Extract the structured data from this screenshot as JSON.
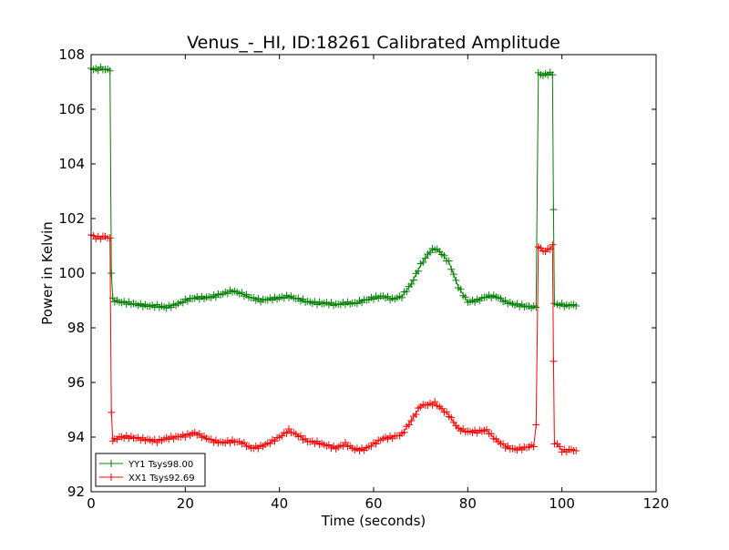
{
  "chart_data": {
    "type": "line",
    "title": "Venus_-_HI, ID:18261 Calibrated Amplitude",
    "xlabel": "Time (seconds)",
    "ylabel": "Power in Kelvin",
    "xlim": [
      0,
      120
    ],
    "ylim": [
      92,
      108
    ],
    "xticks": [
      0,
      20,
      40,
      60,
      80,
      100,
      120
    ],
    "yticks": [
      92,
      94,
      96,
      98,
      100,
      102,
      104,
      106,
      108
    ],
    "xtick_labels": [
      "0",
      "20",
      "40",
      "60",
      "80",
      "100",
      "120"
    ],
    "ytick_labels": [
      "92",
      "94",
      "96",
      "98",
      "100",
      "102",
      "104",
      "106",
      "108"
    ],
    "grid": false,
    "legend_position": "lower-left",
    "series": [
      {
        "name": "YY1 Tsys98.00",
        "color": "#008000",
        "marker": "+",
        "points": [
          [
            0,
            107.5
          ],
          [
            1,
            107.45
          ],
          [
            2,
            107.5
          ],
          [
            3,
            107.45
          ],
          [
            4,
            107.45
          ],
          [
            4.3,
            100.0
          ],
          [
            4.6,
            99.05
          ],
          [
            5,
            99.0
          ],
          [
            6,
            98.95
          ],
          [
            8,
            98.9
          ],
          [
            10,
            98.85
          ],
          [
            12,
            98.8
          ],
          [
            14,
            98.8
          ],
          [
            16,
            98.75
          ],
          [
            18,
            98.85
          ],
          [
            20,
            99.0
          ],
          [
            22,
            99.1
          ],
          [
            24,
            99.1
          ],
          [
            26,
            99.15
          ],
          [
            28,
            99.25
          ],
          [
            30,
            99.35
          ],
          [
            32,
            99.25
          ],
          [
            34,
            99.1
          ],
          [
            36,
            99.0
          ],
          [
            38,
            99.05
          ],
          [
            40,
            99.1
          ],
          [
            42,
            99.15
          ],
          [
            44,
            99.05
          ],
          [
            46,
            98.95
          ],
          [
            48,
            98.9
          ],
          [
            50,
            98.9
          ],
          [
            52,
            98.85
          ],
          [
            54,
            98.9
          ],
          [
            56,
            98.9
          ],
          [
            58,
            99.0
          ],
          [
            60,
            99.1
          ],
          [
            62,
            99.15
          ],
          [
            64,
            99.05
          ],
          [
            66,
            99.15
          ],
          [
            68,
            99.6
          ],
          [
            70,
            100.3
          ],
          [
            72,
            100.8
          ],
          [
            73,
            100.9
          ],
          [
            74,
            100.8
          ],
          [
            76,
            100.4
          ],
          [
            78,
            99.5
          ],
          [
            80,
            98.95
          ],
          [
            82,
            99.0
          ],
          [
            84,
            99.15
          ],
          [
            86,
            99.15
          ],
          [
            88,
            98.95
          ],
          [
            90,
            98.85
          ],
          [
            92,
            98.8
          ],
          [
            94,
            98.75
          ],
          [
            94.5,
            98.8
          ],
          [
            95,
            107.3
          ],
          [
            96,
            107.25
          ],
          [
            97,
            107.3
          ],
          [
            98,
            107.3
          ],
          [
            98.2,
            102.3
          ],
          [
            98.4,
            98.85
          ],
          [
            99,
            98.85
          ],
          [
            100,
            98.85
          ],
          [
            101,
            98.8
          ],
          [
            102,
            98.85
          ],
          [
            103,
            98.8
          ]
        ]
      },
      {
        "name": "XX1 Tsys92.69",
        "color": "#ff0000",
        "marker": "+",
        "points": [
          [
            0,
            101.4
          ],
          [
            1,
            101.3
          ],
          [
            2,
            101.3
          ],
          [
            3,
            101.35
          ],
          [
            4,
            101.25
          ],
          [
            4.3,
            94.9
          ],
          [
            4.6,
            93.9
          ],
          [
            5,
            93.9
          ],
          [
            6,
            94.0
          ],
          [
            8,
            94.0
          ],
          [
            10,
            93.95
          ],
          [
            12,
            93.9
          ],
          [
            14,
            93.85
          ],
          [
            16,
            93.95
          ],
          [
            18,
            94.0
          ],
          [
            20,
            94.05
          ],
          [
            22,
            94.15
          ],
          [
            24,
            94.0
          ],
          [
            26,
            93.85
          ],
          [
            28,
            93.8
          ],
          [
            30,
            93.85
          ],
          [
            32,
            93.8
          ],
          [
            34,
            93.6
          ],
          [
            36,
            93.65
          ],
          [
            38,
            93.8
          ],
          [
            40,
            94.0
          ],
          [
            42,
            94.25
          ],
          [
            44,
            94.05
          ],
          [
            46,
            93.85
          ],
          [
            48,
            93.8
          ],
          [
            50,
            93.7
          ],
          [
            52,
            93.6
          ],
          [
            54,
            93.75
          ],
          [
            56,
            93.55
          ],
          [
            58,
            93.55
          ],
          [
            60,
            93.75
          ],
          [
            62,
            93.95
          ],
          [
            64,
            94.0
          ],
          [
            66,
            94.1
          ],
          [
            68,
            94.6
          ],
          [
            70,
            95.15
          ],
          [
            72,
            95.2
          ],
          [
            73,
            95.25
          ],
          [
            74,
            95.1
          ],
          [
            76,
            94.8
          ],
          [
            78,
            94.3
          ],
          [
            80,
            94.2
          ],
          [
            82,
            94.2
          ],
          [
            84,
            94.25
          ],
          [
            86,
            93.9
          ],
          [
            88,
            93.65
          ],
          [
            90,
            93.55
          ],
          [
            92,
            93.6
          ],
          [
            94,
            93.7
          ],
          [
            94.5,
            94.4
          ],
          [
            95,
            101.0
          ],
          [
            96,
            100.8
          ],
          [
            97,
            100.85
          ],
          [
            98,
            101.0
          ],
          [
            98.2,
            96.8
          ],
          [
            98.4,
            93.8
          ],
          [
            99,
            93.75
          ],
          [
            100,
            93.5
          ],
          [
            101,
            93.5
          ],
          [
            102,
            93.55
          ],
          [
            103,
            93.5
          ]
        ]
      }
    ]
  }
}
